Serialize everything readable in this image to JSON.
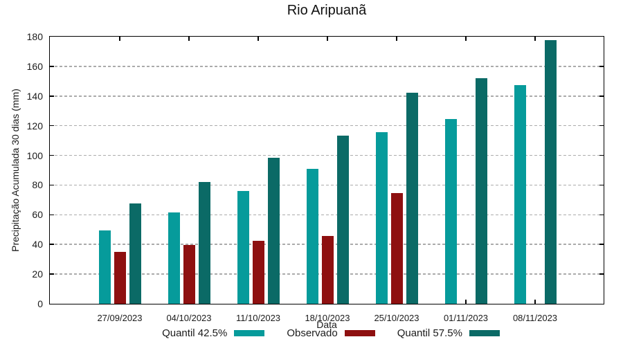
{
  "title": "Rio Aripuanã",
  "chart_data": {
    "type": "bar",
    "title": "Rio Aripuanã",
    "xlabel": "Data",
    "ylabel": "Precipitação Acumulada 30 dias (mm)",
    "categories": [
      "27/09/2023",
      "04/10/2023",
      "11/10/2023",
      "18/10/2023",
      "25/10/2023",
      "01/11/2023",
      "08/11/2023"
    ],
    "series": [
      {
        "name": "Quantil 42.5%",
        "color": "#069b9b",
        "values": [
          49.5,
          61.5,
          76,
          91,
          115.5,
          124.5,
          147.5
        ]
      },
      {
        "name": "Observado",
        "color": "#8e1010",
        "values": [
          35,
          39.5,
          42.5,
          45.5,
          74.5,
          null,
          null
        ]
      },
      {
        "name": "Quantil 57.5%",
        "color": "#0b6a66",
        "values": [
          67.5,
          82,
          98.5,
          113.5,
          142,
          152,
          177.5
        ]
      }
    ],
    "ylim": [
      0,
      180
    ],
    "ytick_step": 20,
    "grid": "horizontal-dashed",
    "legend_position": "bottom"
  },
  "colors": {
    "background": "#ffffff",
    "axis": "#000000",
    "grid": "#ababab",
    "text": "#1a1a1a"
  }
}
